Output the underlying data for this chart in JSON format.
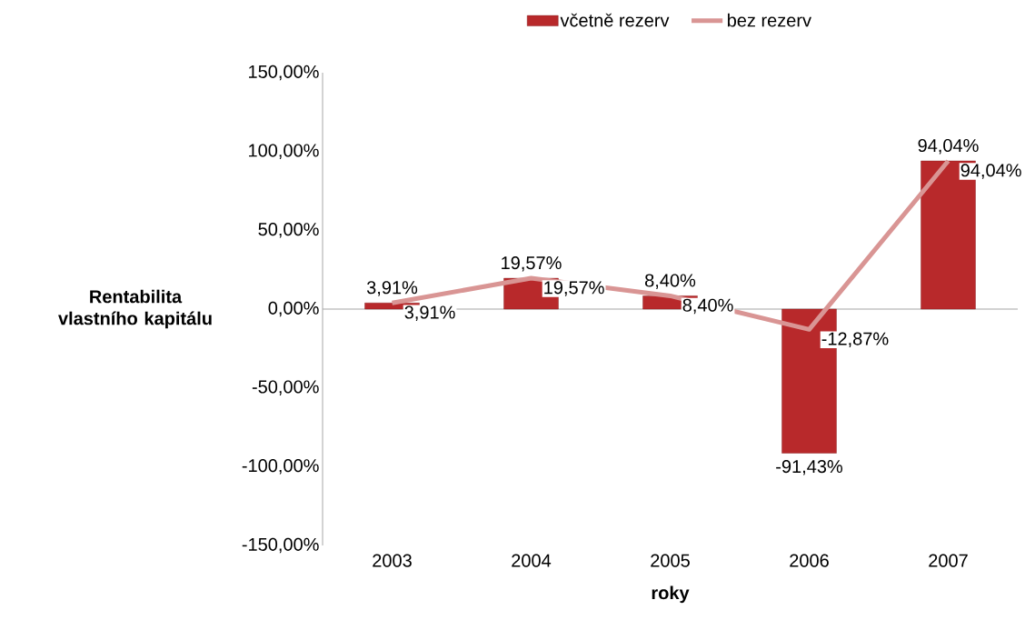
{
  "chart_data": {
    "type": "bar",
    "xlabel": "roky",
    "ylabel": "Rentabilita vlastního kapitálu",
    "categories": [
      "2003",
      "2004",
      "2005",
      "2006",
      "2007"
    ],
    "series": [
      {
        "name": "včetně rezerv",
        "color": "#b8292b",
        "values": [
          3.91,
          19.57,
          8.4,
          -91.43,
          94.04
        ],
        "value_labels": [
          "3,91%",
          "19,57%",
          "8,40%",
          "-91,43%",
          "94,04%"
        ]
      },
      {
        "name": "bez rezerv",
        "type": "line",
        "color": "#d99594",
        "values": [
          3.91,
          19.57,
          8.4,
          -12.87,
          94.04
        ],
        "value_labels": [
          "3,91%",
          "19,57%",
          "8,40%",
          "-12,87%",
          "94,04%"
        ]
      }
    ],
    "ylim": [
      -150,
      150
    ],
    "yticks": [
      {
        "value": -150,
        "label": "-150,00%"
      },
      {
        "value": -100,
        "label": "-100,00%"
      },
      {
        "value": -50,
        "label": "-50,00%"
      },
      {
        "value": 0,
        "label": "0,00%"
      },
      {
        "value": 50,
        "label": "50,00%"
      },
      {
        "value": 100,
        "label": "100,00%"
      },
      {
        "value": 150,
        "label": "150,00%"
      }
    ],
    "legend": "top",
    "marker": "none"
  }
}
